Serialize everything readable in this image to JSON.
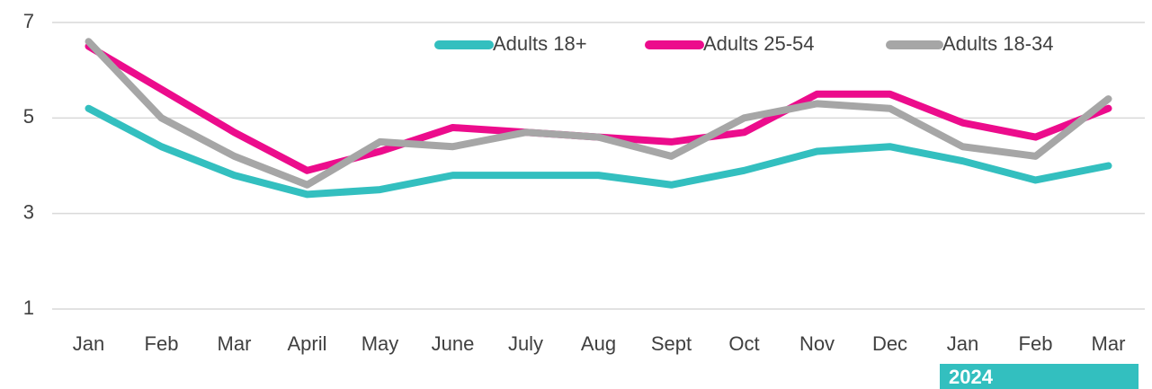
{
  "chart_data": {
    "type": "line",
    "categories": [
      "Jan",
      "Feb",
      "Mar",
      "April",
      "May",
      "June",
      "July",
      "Aug",
      "Sept",
      "Oct",
      "Nov",
      "Dec",
      "Jan",
      "Feb",
      "Mar"
    ],
    "series": [
      {
        "name": "Adults 18+",
        "color": "#33bfbf",
        "values": [
          5.2,
          4.4,
          3.8,
          3.4,
          3.5,
          3.8,
          3.8,
          3.8,
          3.6,
          3.9,
          4.3,
          4.4,
          4.1,
          3.7,
          4.0
        ]
      },
      {
        "name": "Adults 25-54",
        "color": "#ec0c8c",
        "values": [
          6.5,
          5.6,
          4.7,
          3.9,
          4.3,
          4.8,
          4.7,
          4.6,
          4.5,
          4.7,
          5.5,
          5.5,
          4.9,
          4.6,
          5.2
        ]
      },
      {
        "name": "Adults 18-34",
        "color": "#a6a6a6",
        "values": [
          6.6,
          5.0,
          4.2,
          3.6,
          4.5,
          4.4,
          4.7,
          4.6,
          4.2,
          5.0,
          5.3,
          5.2,
          4.4,
          4.2,
          5.4
        ]
      }
    ],
    "ylim": [
      1,
      7
    ],
    "yticks": [
      1,
      3,
      5,
      7
    ],
    "grid": true,
    "legend": "top-right",
    "annotation": "2024"
  }
}
